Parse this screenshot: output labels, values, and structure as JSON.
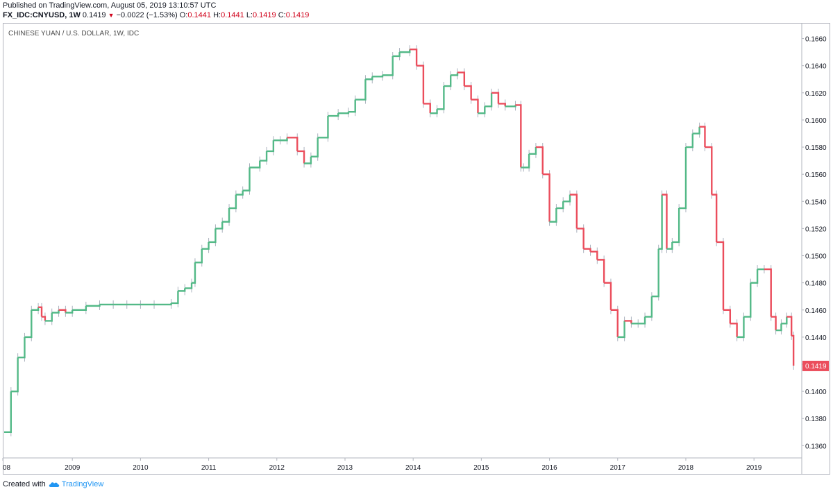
{
  "header": {
    "published": "Published on TradingView.com, August 05, 2019 13:10:57 UTC",
    "symbol": "FX_IDC:CNYUSD, 1W",
    "last": "0.1419",
    "down_arrow": "▼",
    "change": "−0.0022 (−1.53%)",
    "o_label": "O:",
    "o_value": "0.1441",
    "h_label": "H:",
    "h_value": "0.1441",
    "l_label": "L:",
    "l_value": "0.1419",
    "c_label": "C:",
    "c_value": "0.1419"
  },
  "footer": {
    "created_with": "Created with",
    "brand": "TradingView",
    "logo_icon": "tradingview-cloud-icon"
  },
  "colors": {
    "up": "#53b987",
    "down": "#eb4d5c",
    "wick": "#aab1bd",
    "last_price_bg": "#eb4d5c"
  },
  "chart_data": {
    "type": "line",
    "title": "CHINESE YUAN / U.S. DOLLAR, 1W, IDC",
    "xlabel": "",
    "ylabel": "",
    "x_tick_labels": [
      "08",
      "2009",
      "2010",
      "2011",
      "2012",
      "2013",
      "2014",
      "2015",
      "2016",
      "2017",
      "2018",
      "2019"
    ],
    "y_tick_labels": [
      "0.1360",
      "0.1380",
      "0.1400",
      "0.1420",
      "0.1440",
      "0.1460",
      "0.1480",
      "0.1500",
      "0.1520",
      "0.1540",
      "0.1560",
      "0.1580",
      "0.1600",
      "0.1620",
      "0.1640",
      "0.1660"
    ],
    "ylim": [
      0.1352,
      0.167
    ],
    "xlim": [
      2008.0,
      2019.65
    ],
    "last_price_label": "0.1419",
    "grid": false,
    "series": [
      {
        "values_x": [
          2008.0,
          2008.1,
          2008.2,
          2008.3,
          2008.4,
          2008.5,
          2008.55,
          2008.6,
          2008.7,
          2008.8,
          2008.9,
          2009.0,
          2009.2,
          2009.4,
          2009.6,
          2009.8,
          2010.0,
          2010.2,
          2010.45,
          2010.55,
          2010.65,
          2010.75,
          2010.8,
          2010.9,
          2011.0,
          2011.1,
          2011.2,
          2011.3,
          2011.4,
          2011.5,
          2011.6,
          2011.75,
          2011.85,
          2011.95,
          2012.05,
          2012.15,
          2012.3,
          2012.4,
          2012.5,
          2012.6,
          2012.75,
          2012.9,
          2013.05,
          2013.15,
          2013.3,
          2013.4,
          2013.55,
          2013.7,
          2013.8,
          2013.95,
          2014.05,
          2014.15,
          2014.25,
          2014.35,
          2014.45,
          2014.55,
          2014.65,
          2014.75,
          2014.85,
          2014.95,
          2015.05,
          2015.15,
          2015.25,
          2015.35,
          2015.5,
          2015.58,
          2015.62,
          2015.7,
          2015.8,
          2015.9,
          2016.0,
          2016.1,
          2016.2,
          2016.3,
          2016.4,
          2016.5,
          2016.6,
          2016.7,
          2016.8,
          2016.9,
          2017.0,
          2017.1,
          2017.2,
          2017.3,
          2017.4,
          2017.5,
          2017.6,
          2017.65,
          2017.72,
          2017.8,
          2017.9,
          2018.0,
          2018.1,
          2018.2,
          2018.28,
          2018.38,
          2018.45,
          2018.55,
          2018.65,
          2018.75,
          2018.85,
          2018.95,
          2019.05,
          2019.15,
          2019.25,
          2019.32,
          2019.4,
          2019.48,
          2019.55,
          2019.58
        ],
        "values": [
          0.137,
          0.14,
          0.1425,
          0.144,
          0.146,
          0.1462,
          0.1455,
          0.1452,
          0.1458,
          0.146,
          0.1458,
          0.146,
          0.1463,
          0.1464,
          0.1464,
          0.1464,
          0.1464,
          0.1464,
          0.1465,
          0.1474,
          0.1476,
          0.148,
          0.1495,
          0.1505,
          0.151,
          0.152,
          0.1525,
          0.1535,
          0.1545,
          0.1548,
          0.1565,
          0.157,
          0.1577,
          0.1585,
          0.1585,
          0.1587,
          0.1577,
          0.1568,
          0.1573,
          0.1587,
          0.1603,
          0.1605,
          0.1606,
          0.1615,
          0.163,
          0.1632,
          0.1633,
          0.1647,
          0.165,
          0.1652,
          0.164,
          0.1612,
          0.1605,
          0.1608,
          0.1625,
          0.1633,
          0.1635,
          0.1625,
          0.1615,
          0.1605,
          0.161,
          0.162,
          0.1612,
          0.161,
          0.1611,
          0.1565,
          0.1565,
          0.1575,
          0.158,
          0.156,
          0.1525,
          0.1535,
          0.154,
          0.1545,
          0.152,
          0.1505,
          0.1503,
          0.1497,
          0.148,
          0.146,
          0.144,
          0.1452,
          0.145,
          0.145,
          0.1455,
          0.147,
          0.1505,
          0.1545,
          0.1505,
          0.151,
          0.1535,
          0.158,
          0.159,
          0.1595,
          0.158,
          0.1545,
          0.151,
          0.146,
          0.145,
          0.144,
          0.1455,
          0.148,
          0.149,
          0.149,
          0.1455,
          0.1445,
          0.145,
          0.1455,
          0.1441,
          0.1419
        ]
      }
    ]
  }
}
